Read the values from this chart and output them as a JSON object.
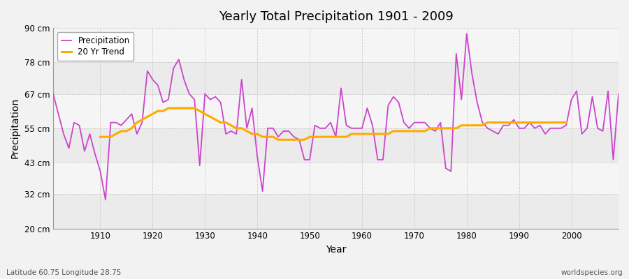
{
  "title": "Yearly Total Precipitation 1901 - 2009",
  "xlabel": "Year",
  "ylabel": "Precipitation",
  "subtitle": "Latitude 60.75 Longitude 28.75",
  "watermark": "worldspecies.org",
  "bg_color": "#f0f0f0",
  "plot_bg_color": "#f0f0f0",
  "band_color_dark": "#e0e0e8",
  "band_color_light": "#f0f0f4",
  "precip_color": "#cc44cc",
  "trend_color": "#ffaa00",
  "precip_label": "Precipitation",
  "trend_label": "20 Yr Trend",
  "ylim": [
    20,
    90
  ],
  "yticks": [
    20,
    32,
    43,
    55,
    67,
    78,
    90
  ],
  "ytick_labels": [
    "20 cm",
    "32 cm",
    "43 cm",
    "55 cm",
    "67 cm",
    "78 cm",
    "90 cm"
  ],
  "years": [
    1901,
    1902,
    1903,
    1904,
    1905,
    1906,
    1907,
    1908,
    1909,
    1910,
    1911,
    1912,
    1913,
    1914,
    1915,
    1916,
    1917,
    1918,
    1919,
    1920,
    1921,
    1922,
    1923,
    1924,
    1925,
    1926,
    1927,
    1928,
    1929,
    1930,
    1931,
    1932,
    1933,
    1934,
    1935,
    1936,
    1937,
    1938,
    1939,
    1940,
    1941,
    1942,
    1943,
    1944,
    1945,
    1946,
    1947,
    1948,
    1949,
    1950,
    1951,
    1952,
    1953,
    1954,
    1955,
    1956,
    1957,
    1958,
    1959,
    1960,
    1961,
    1962,
    1963,
    1964,
    1965,
    1966,
    1967,
    1968,
    1969,
    1970,
    1971,
    1972,
    1973,
    1974,
    1975,
    1976,
    1977,
    1978,
    1979,
    1980,
    1981,
    1982,
    1983,
    1984,
    1985,
    1986,
    1987,
    1988,
    1989,
    1990,
    1991,
    1992,
    1993,
    1994,
    1995,
    1996,
    1997,
    1998,
    1999,
    2000,
    2001,
    2002,
    2003,
    2004,
    2005,
    2006,
    2007,
    2008,
    2009
  ],
  "precip": [
    67,
    60,
    53,
    48,
    57,
    56,
    47,
    53,
    46,
    40,
    30,
    57,
    57,
    56,
    58,
    60,
    53,
    57,
    75,
    72,
    70,
    64,
    65,
    76,
    79,
    72,
    67,
    65,
    42,
    67,
    65,
    66,
    64,
    53,
    54,
    53,
    72,
    55,
    62,
    45,
    33,
    55,
    55,
    52,
    54,
    54,
    52,
    51,
    44,
    44,
    56,
    55,
    55,
    57,
    52,
    69,
    56,
    55,
    55,
    55,
    62,
    56,
    44,
    44,
    63,
    66,
    64,
    57,
    55,
    57,
    57,
    57,
    55,
    54,
    57,
    41,
    40,
    81,
    65,
    88,
    74,
    64,
    57,
    55,
    54,
    53,
    56,
    56,
    58,
    55,
    55,
    57,
    55,
    56,
    53,
    55,
    55,
    55,
    56,
    65,
    68,
    53,
    55,
    66,
    55,
    54,
    68,
    44,
    67
  ],
  "trend": [
    null,
    null,
    null,
    null,
    null,
    null,
    null,
    null,
    null,
    52,
    52,
    52,
    53,
    54,
    54,
    55,
    57,
    58,
    59,
    60,
    61,
    61,
    62,
    62,
    62,
    62,
    62,
    62,
    61,
    60,
    59,
    58,
    57,
    57,
    56,
    55,
    55,
    54,
    53,
    53,
    52,
    52,
    52,
    51,
    51,
    51,
    51,
    51,
    51,
    52,
    52,
    52,
    52,
    52,
    52,
    52,
    52,
    53,
    53,
    53,
    53,
    53,
    53,
    53,
    53,
    54,
    54,
    54,
    54,
    54,
    54,
    54,
    55,
    55,
    55,
    55,
    55,
    55,
    56,
    56,
    56,
    56,
    56,
    57,
    57,
    57,
    57,
    57,
    57,
    57,
    57,
    57,
    57,
    57,
    57,
    57,
    57,
    57,
    57,
    null,
    null,
    null,
    null,
    null,
    null,
    null,
    null,
    null,
    null
  ]
}
